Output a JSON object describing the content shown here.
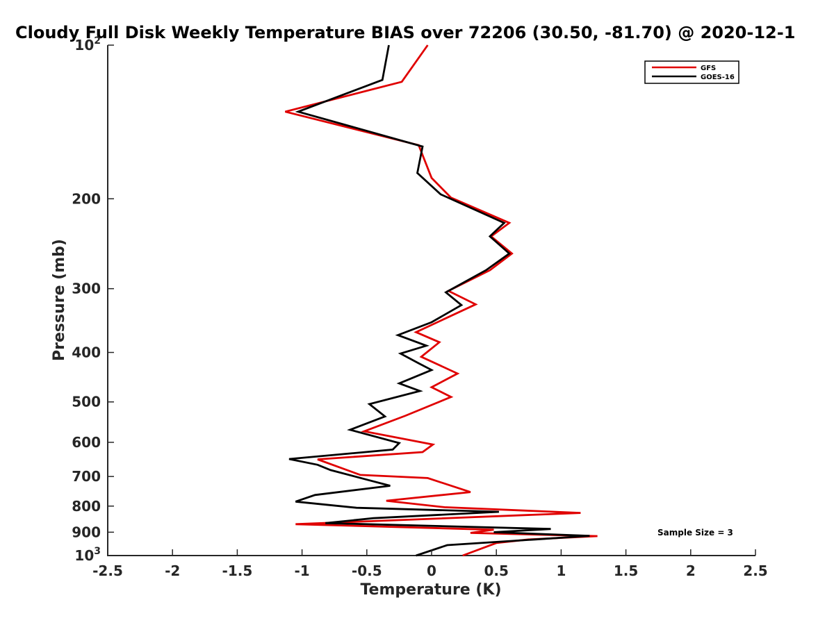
{
  "chart_data": {
    "type": "line",
    "title": "Cloudy Full Disk Weekly Temperature BIAS over 72206 (30.50, -81.70) @ 2020-12-1",
    "xlabel": "Temperature (K)",
    "ylabel": "Pressure (mb)",
    "xlim": [
      -2.5,
      2.5
    ],
    "ylim": [
      1000,
      100
    ],
    "yscale": "log",
    "y_reversed": true,
    "grid": false,
    "legend_position": "top-right",
    "x_ticks": [
      {
        "value": -2.5,
        "label": "-2.5"
      },
      {
        "value": -2,
        "label": "-2"
      },
      {
        "value": -1.5,
        "label": "-1.5"
      },
      {
        "value": -1,
        "label": "-1"
      },
      {
        "value": -0.5,
        "label": "-0.5"
      },
      {
        "value": 0,
        "label": "0"
      },
      {
        "value": 0.5,
        "label": "0.5"
      },
      {
        "value": 1,
        "label": "1"
      },
      {
        "value": 1.5,
        "label": "1.5"
      },
      {
        "value": 2,
        "label": "2"
      },
      {
        "value": 2.5,
        "label": "2.5"
      }
    ],
    "y_ticks": [
      {
        "value": 100,
        "base": "10",
        "exp": "2"
      },
      {
        "value": 200,
        "base": "200",
        "exp": ""
      },
      {
        "value": 300,
        "base": "300",
        "exp": ""
      },
      {
        "value": 400,
        "base": "400",
        "exp": ""
      },
      {
        "value": 500,
        "base": "500",
        "exp": ""
      },
      {
        "value": 600,
        "base": "600",
        "exp": ""
      },
      {
        "value": 700,
        "base": "700",
        "exp": ""
      },
      {
        "value": 800,
        "base": "800",
        "exp": ""
      },
      {
        "value": 900,
        "base": "900",
        "exp": ""
      },
      {
        "value": 1000,
        "base": "10",
        "exp": "3"
      }
    ],
    "annotation": "Sample Size = 3",
    "series": [
      {
        "name": "GFS",
        "color": "#e00000",
        "points": [
          [
            -0.03,
            100
          ],
          [
            -0.23,
            118
          ],
          [
            -1.13,
            135
          ],
          [
            -0.1,
            157
          ],
          [
            0,
            182
          ],
          [
            0.15,
            199
          ],
          [
            0.6,
            223
          ],
          [
            0.46,
            237
          ],
          [
            0.62,
            256
          ],
          [
            0.45,
            276
          ],
          [
            0.13,
            303
          ],
          [
            0.34,
            322
          ],
          [
            -0.12,
            365
          ],
          [
            0.06,
            382
          ],
          [
            -0.08,
            408
          ],
          [
            0.2,
            440
          ],
          [
            0,
            468
          ],
          [
            0.15,
            489
          ],
          [
            -0.2,
            532
          ],
          [
            -0.52,
            571
          ],
          [
            0.01,
            606
          ],
          [
            -0.07,
            627
          ],
          [
            -0.88,
            648
          ],
          [
            -0.55,
            695
          ],
          [
            -0.03,
            705
          ],
          [
            0.3,
            751
          ],
          [
            -0.35,
            781
          ],
          [
            0.1,
            804
          ],
          [
            1.15,
            825
          ],
          [
            -1.05,
            868
          ],
          [
            0.48,
            890
          ],
          [
            0.3,
            903
          ],
          [
            1.28,
            916
          ],
          [
            0.75,
            930
          ],
          [
            0.5,
            945
          ],
          [
            0.24,
            1000
          ]
        ]
      },
      {
        "name": "GOES-16",
        "color": "#000000",
        "points": [
          [
            -0.33,
            100
          ],
          [
            -0.38,
            117
          ],
          [
            -1.03,
            135
          ],
          [
            -0.07,
            158
          ],
          [
            -0.11,
            178
          ],
          [
            0.07,
            196
          ],
          [
            0.56,
            223
          ],
          [
            0.45,
            237
          ],
          [
            0.6,
            256
          ],
          [
            0.42,
            276
          ],
          [
            0.11,
            305
          ],
          [
            0.23,
            323
          ],
          [
            0,
            349
          ],
          [
            -0.26,
            370
          ],
          [
            -0.04,
            388
          ],
          [
            -0.24,
            402
          ],
          [
            -0.1,
            420
          ],
          [
            0,
            433
          ],
          [
            -0.25,
            460
          ],
          [
            -0.09,
            476
          ],
          [
            -0.48,
            505
          ],
          [
            -0.36,
            534
          ],
          [
            -0.63,
            567
          ],
          [
            -0.25,
            602
          ],
          [
            -0.3,
            620
          ],
          [
            -1.1,
            647
          ],
          [
            -0.88,
            664
          ],
          [
            -0.78,
            680
          ],
          [
            -0.5,
            710
          ],
          [
            -0.32,
            730
          ],
          [
            -0.9,
            761
          ],
          [
            -1.05,
            784
          ],
          [
            -0.58,
            806
          ],
          [
            0.52,
            821
          ],
          [
            -0.45,
            845
          ],
          [
            -0.82,
            864
          ],
          [
            0.92,
            887
          ],
          [
            0.48,
            900
          ],
          [
            1.22,
            915
          ],
          [
            0.8,
            930
          ],
          [
            0.12,
            954
          ],
          [
            -0.12,
            1000
          ]
        ]
      }
    ]
  }
}
